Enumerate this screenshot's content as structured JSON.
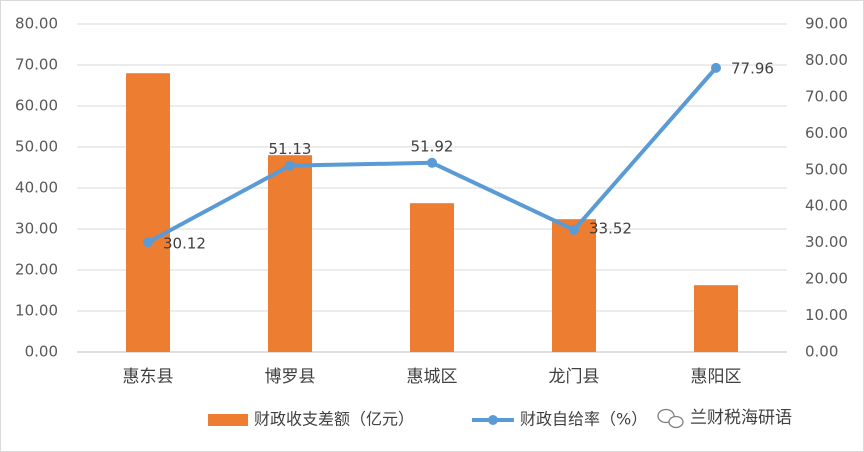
{
  "chart_data": {
    "type": "bar-line",
    "categories": [
      "惠东县",
      "博罗县",
      "惠城区",
      "龙门县",
      "惠阳区"
    ],
    "series": [
      {
        "name": "财政收支差额（亿元）",
        "color": "#ed7d31",
        "type": "bar",
        "values": [
          68.0,
          48.0,
          36.3,
          32.4,
          16.3
        ]
      },
      {
        "name": "财政自给率（%）",
        "color": "#5b9bd5",
        "type": "line",
        "axis": "y2",
        "values": [
          30.12,
          51.13,
          51.92,
          33.52,
          77.96
        ]
      }
    ],
    "ylim": [
      0,
      80
    ],
    "yticks": [
      {
        "value": 0,
        "label": "0.00"
      },
      {
        "value": 10,
        "label": "10.00"
      },
      {
        "value": 20,
        "label": "20.00"
      },
      {
        "value": 30,
        "label": "30.00"
      },
      {
        "value": 40,
        "label": "40.00"
      },
      {
        "value": 50,
        "label": "50.00"
      },
      {
        "value": 60,
        "label": "60.00"
      },
      {
        "value": 70,
        "label": "70.00"
      },
      {
        "value": 80,
        "label": "80.00"
      }
    ],
    "y2lim": [
      0,
      90
    ],
    "y2ticks": [
      {
        "value": 0,
        "label": "0.00"
      },
      {
        "value": 10,
        "label": "10.00"
      },
      {
        "value": 20,
        "label": "20.00"
      },
      {
        "value": 30,
        "label": "30.00"
      },
      {
        "value": 40,
        "label": "40.00"
      },
      {
        "value": 50,
        "label": "50.00"
      },
      {
        "value": 60,
        "label": "60.00"
      },
      {
        "value": 70,
        "label": "70.00"
      },
      {
        "value": 80,
        "label": "80.00"
      },
      {
        "value": 90,
        "label": "90.00"
      }
    ],
    "grid": true,
    "legend": "bottom",
    "watermark": "兰财税海研语"
  }
}
